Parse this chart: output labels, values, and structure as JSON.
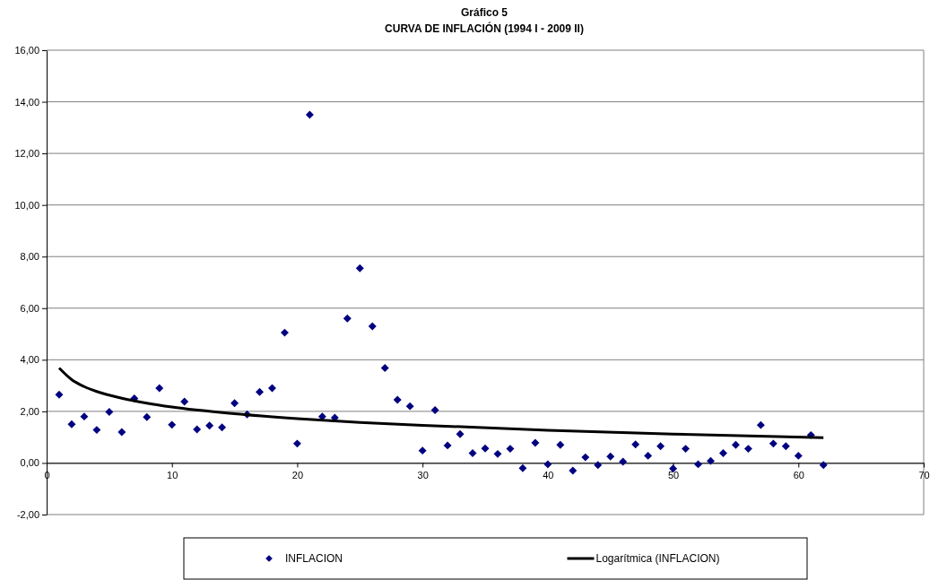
{
  "chart_data": {
    "type": "scatter",
    "title": "Gráfico 5",
    "subtitle": "CURVA DE INFLACIÓN (1994 I - 2009 II)",
    "x": [
      1,
      2,
      3,
      4,
      5,
      6,
      7,
      8,
      9,
      10,
      11,
      12,
      13,
      14,
      15,
      16,
      17,
      18,
      19,
      20,
      21,
      22,
      23,
      24,
      25,
      26,
      27,
      28,
      29,
      30,
      31,
      32,
      33,
      34,
      35,
      36,
      37,
      38,
      39,
      40,
      41,
      42,
      43,
      44,
      45,
      46,
      47,
      48,
      49,
      50,
      51,
      52,
      53,
      54,
      55,
      56,
      57,
      58,
      59,
      60,
      61,
      62
    ],
    "series": [
      {
        "name": "INFLACION",
        "color": "#000080",
        "marker": "diamond",
        "values": [
          2.65,
          1.5,
          1.8,
          1.28,
          1.98,
          1.2,
          2.5,
          1.78,
          2.9,
          1.48,
          2.38,
          1.3,
          1.45,
          1.38,
          2.32,
          1.88,
          2.75,
          2.9,
          5.05,
          0.75,
          13.5,
          1.8,
          1.75,
          5.6,
          7.55,
          5.3,
          3.68,
          2.45,
          2.2,
          0.48,
          2.05,
          0.68,
          1.12,
          0.38,
          0.56,
          0.35,
          0.55,
          -0.2,
          0.78,
          -0.05,
          0.7,
          -0.3,
          0.22,
          -0.08,
          0.25,
          0.05,
          0.72,
          0.28,
          0.65,
          -0.22,
          0.55,
          -0.05,
          0.08,
          0.38,
          0.7,
          0.55,
          1.47,
          0.75,
          0.65,
          0.28,
          1.08,
          -0.08
        ]
      },
      {
        "name": "Logarítmica (INFLACION)",
        "type": "line",
        "color": "#000000",
        "marker": "none",
        "line_style": "solid",
        "x": [
          1,
          2,
          3,
          4,
          6,
          8,
          10,
          15,
          20,
          25,
          30,
          40,
          50,
          62
        ],
        "values": [
          3.68,
          3.23,
          2.96,
          2.77,
          2.51,
          2.32,
          2.17,
          1.91,
          1.72,
          1.57,
          1.46,
          1.27,
          1.12,
          0.98
        ]
      }
    ],
    "xlim": [
      0,
      70
    ],
    "xticks": [
      0,
      10,
      20,
      30,
      40,
      50,
      60,
      70
    ],
    "ylim": [
      -2,
      16
    ],
    "yticks": [
      {
        "value": -2,
        "label": "-2,00"
      },
      {
        "value": 0,
        "label": "0,00"
      },
      {
        "value": 2,
        "label": "2,00"
      },
      {
        "value": 4,
        "label": "4,00"
      },
      {
        "value": 6,
        "label": "6,00"
      },
      {
        "value": 8,
        "label": "8,00"
      },
      {
        "value": 10,
        "label": "10,00"
      },
      {
        "value": 12,
        "label": "12,00"
      },
      {
        "value": 14,
        "label": "14,00"
      },
      {
        "value": 16,
        "label": "16,00"
      }
    ],
    "grid": "y",
    "legend": "bottom"
  }
}
